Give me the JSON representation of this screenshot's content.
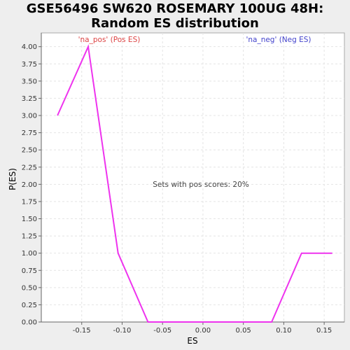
{
  "chart_data": {
    "type": "line",
    "title_lines": [
      "GSE56496 SW620 ROSEMARY 100UG 48H:",
      "Random ES distribution"
    ],
    "xlabel": "ES",
    "ylabel": "P(ES)",
    "xlim": [
      -0.2,
      0.175
    ],
    "ylim": [
      0,
      4.2
    ],
    "x_ticks": [
      "-0.15",
      "-0.10",
      "-0.05",
      "0.00",
      "0.05",
      "0.10",
      "0.15"
    ],
    "x_tick_values": [
      -0.15,
      -0.1,
      -0.05,
      0.0,
      0.05,
      0.1,
      0.15
    ],
    "y_ticks": [
      "0.00",
      "0.25",
      "0.50",
      "0.75",
      "1.00",
      "1.25",
      "1.50",
      "1.75",
      "2.00",
      "2.25",
      "2.50",
      "2.75",
      "3.00",
      "3.25",
      "3.50",
      "3.75",
      "4.00"
    ],
    "y_tick_values": [
      0,
      0.25,
      0.5,
      0.75,
      1.0,
      1.25,
      1.5,
      1.75,
      2.0,
      2.25,
      2.5,
      2.75,
      3.0,
      3.25,
      3.5,
      3.75,
      4.0
    ],
    "grid": true,
    "series": [
      {
        "color": "#ee33ee",
        "x": [
          -0.18,
          -0.142,
          -0.105,
          -0.068,
          -0.03,
          0.01,
          0.05,
          0.085,
          0.122,
          0.16
        ],
        "y": [
          3.0,
          4.0,
          1.0,
          0.0,
          0.0,
          0.0,
          0.0,
          0.0,
          1.0,
          1.0
        ]
      }
    ],
    "annotations": {
      "pos_label": "'na_pos' (Pos ES)",
      "neg_label": "'na_neg' (Neg ES)",
      "center_text": "Sets with pos scores: 20%",
      "pos_color": "#dd4444",
      "neg_color": "#4444cc",
      "center_color": "#444444"
    }
  }
}
